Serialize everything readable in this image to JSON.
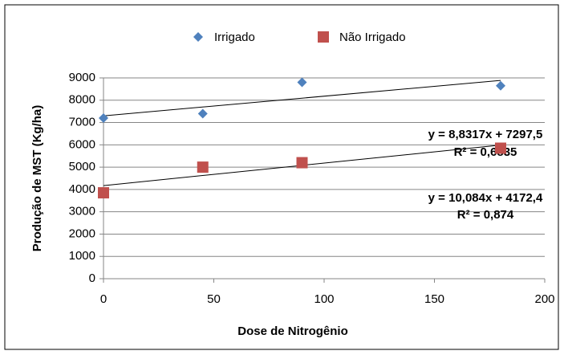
{
  "chart_data": {
    "type": "scatter",
    "x_label": "Dose de Nitrogênio",
    "y_label": "Produção de MST (Kg/ha)",
    "series": [
      {
        "name": "Irrigado",
        "color": "#4f81bd",
        "marker": "diamond",
        "x": [
          0,
          45,
          90,
          180
        ],
        "values": [
          7200,
          7400,
          8800,
          8650
        ],
        "trendline": {
          "slope": 8.8317,
          "intercept": 7297.5,
          "equation": "y = 8,8317x + 7297,5",
          "r2": 0.6835,
          "r2_label": "R² = 0,6835"
        }
      },
      {
        "name": "Não Irrigado",
        "color": "#c0504d",
        "marker": "square",
        "x": [
          0,
          45,
          90,
          180
        ],
        "values": [
          3850,
          5000,
          5200,
          5850
        ],
        "trendline": {
          "slope": 10.084,
          "intercept": 4172.4,
          "equation": "y = 10,084x + 4172,4",
          "r2": 0.874,
          "r2_label": "R² = 0,874"
        }
      }
    ],
    "xlim": [
      0,
      200
    ],
    "xticks": [
      0,
      50,
      100,
      150,
      200
    ],
    "ylim": [
      0,
      9000
    ],
    "yticks": [
      0,
      1000,
      2000,
      3000,
      4000,
      5000,
      6000,
      7000,
      8000,
      9000
    ],
    "grid": true,
    "legend": "top"
  }
}
